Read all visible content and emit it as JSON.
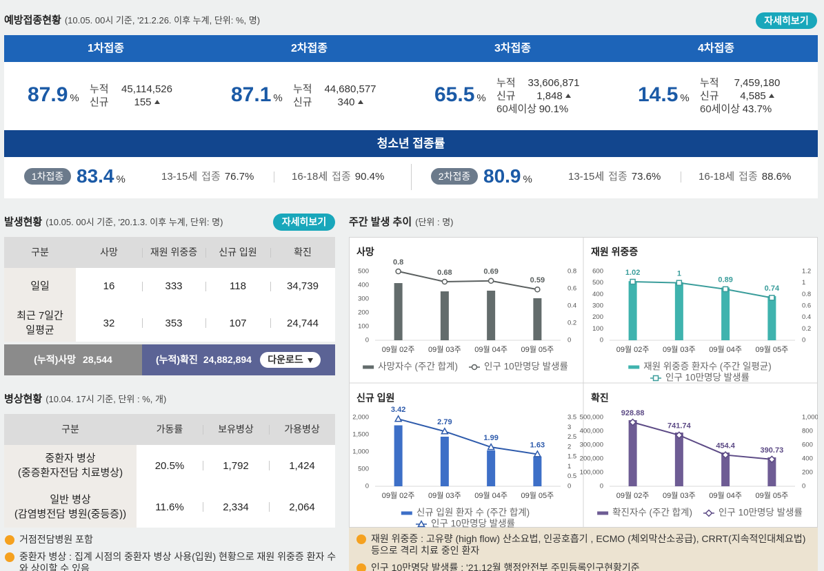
{
  "vaccination": {
    "title": "예방접종현황",
    "subtitle": "(10.05. 00시 기준, '21.2.26. 이후 누계, 단위: %, 명)",
    "button": "자세히보기",
    "unit": "%",
    "doses": [
      {
        "title": "1차접종",
        "rate": "87.9",
        "items": [
          {
            "label": "누적",
            "value": "45,114,526"
          },
          {
            "label": "신규",
            "value": "155"
          }
        ]
      },
      {
        "title": "2차접종",
        "rate": "87.1",
        "items": [
          {
            "label": "누적",
            "value": "44,680,577"
          },
          {
            "label": "신규",
            "value": "340"
          }
        ]
      },
      {
        "title": "3차접종",
        "rate": "65.5",
        "items": [
          {
            "label": "누적",
            "value": "33,606,871"
          },
          {
            "label": "신규",
            "value": "1,848"
          },
          {
            "label": "60세이상",
            "value": "90.1%"
          }
        ]
      },
      {
        "title": "4차접종",
        "rate": "14.5",
        "items": [
          {
            "label": "누적",
            "value": "7,459,180"
          },
          {
            "label": "신규",
            "value": "4,585"
          },
          {
            "label": "60세이상",
            "value": "43.7%"
          }
        ]
      }
    ],
    "youth": {
      "title": "청소년 접종률",
      "groups": [
        {
          "badge": "1차접종",
          "rate": "83.4",
          "ages": [
            {
              "age": "13-15세",
              "label": "접종",
              "value": "76.7%"
            },
            {
              "age": "16-18세",
              "label": "접종",
              "value": "90.4%"
            }
          ]
        },
        {
          "badge": "2차접종",
          "rate": "80.9",
          "ages": [
            {
              "age": "13-15세",
              "label": "접종",
              "value": "73.6%"
            },
            {
              "age": "16-18세",
              "label": "접종",
              "value": "88.6%"
            }
          ]
        }
      ]
    }
  },
  "outbreak": {
    "title": "발생현황",
    "subtitle": "(10.05. 00시 기준, '20.1.3. 이후 누계, 단위: 명)",
    "button": "자세히보기",
    "table": {
      "header": [
        "구분",
        "사망",
        "재원 위중증",
        "신규 입원",
        "확진"
      ],
      "rows": [
        [
          "일일",
          "16",
          "333",
          "118",
          "34,739"
        ],
        [
          "최근 7일간\n일평균",
          "32",
          "353",
          "107",
          "24,744"
        ]
      ]
    },
    "totals": [
      {
        "label": "(누적)사망",
        "value": "28,544"
      },
      {
        "label": "(누적)확진",
        "value": "24,882,894"
      }
    ],
    "download": "다운로드"
  },
  "beds": {
    "title": "병상현황",
    "subtitle": "(10.04. 17시 기준, 단위 : %, 개)",
    "table": {
      "header": [
        "구분",
        "가동률",
        "보유병상",
        "가용병상"
      ],
      "rows": [
        [
          "중환자 병상\n(중증환자전담 치료병상)",
          "20.5%",
          "1,792",
          "1,424"
        ],
        [
          "일반 병상\n(감염병전담 병원(중등증))",
          "11.6%",
          "2,334",
          "2,064"
        ]
      ]
    },
    "notes": [
      "거점전담병원 포함",
      "중환자 병상 : 집계 시점의 중환자 병상 사용(입원) 현황으로 재원 위중증 환자 수와 상이할 수 있음"
    ]
  },
  "weekly": {
    "title": "주간 발생 추이",
    "subtitle": "(단위 : 명)",
    "notes": [
      "재원 위중증 : 고유량 (high flow) 산소요법, 인공호흡기 , ECMO (체외막산소공급), CRRT(지속적인대체요법) 등으로 격리 치료 중인 환자",
      "인구 10만명당 발생률 : '21.12월 행정안전부 주민등록인구현황기준"
    ]
  },
  "chart_data": [
    {
      "type": "combo",
      "title": "사망",
      "categories": [
        "09월 02주",
        "09월 03주",
        "09월 04주",
        "09월 05주"
      ],
      "series": [
        {
          "name": "사망자수 (주간 합계)",
          "type": "bar",
          "color": "#636c6c",
          "values": [
            415,
            355,
            360,
            305
          ]
        },
        {
          "name": "인구 10만명당 발생률",
          "type": "line",
          "axis": "y2",
          "marker": "circle",
          "data_labels": true,
          "color": "#5a5f5f",
          "values": [
            0.8,
            0.68,
            0.69,
            0.59
          ]
        }
      ],
      "ylim": [
        0,
        500
      ],
      "yticks": [
        0,
        100,
        200,
        300,
        400,
        500
      ],
      "y2lim": [
        0,
        0.8
      ],
      "y2ticks": [
        0,
        0.2,
        0.4,
        0.6,
        0.8
      ]
    },
    {
      "type": "combo",
      "title": "재원 위중증",
      "categories": [
        "09월 02주",
        "09월 03주",
        "09월 04주",
        "09월 05주"
      ],
      "series": [
        {
          "name": "재원 위중증 환자수 (주간 일평균)",
          "type": "bar",
          "color": "#3fb3ae",
          "values": [
            515,
            505,
            460,
            385
          ]
        },
        {
          "name": "인구 10만명당 발생률",
          "type": "line",
          "axis": "y2",
          "marker": "square",
          "data_labels": true,
          "color": "#3a9d9b",
          "values": [
            1.02,
            1,
            0.89,
            0.74
          ]
        }
      ],
      "ylim": [
        0,
        600
      ],
      "yticks": [
        0,
        100,
        200,
        300,
        400,
        500,
        600
      ],
      "y2lim": [
        0,
        1.2
      ],
      "y2ticks": [
        0,
        0.2,
        0.4,
        0.6,
        0.8,
        1,
        1.2
      ]
    },
    {
      "type": "combo",
      "title": "신규 입원",
      "categories": [
        "09월 02주",
        "09월 03주",
        "09월 04주",
        "09월 05주"
      ],
      "series": [
        {
          "name": "신규 입원 환자 수 (주간 합계)",
          "type": "bar",
          "color": "#3d6fc7",
          "values": [
            1770,
            1440,
            1040,
            865
          ]
        },
        {
          "name": "인구 10만명당 발생률",
          "type": "line",
          "axis": "y2",
          "marker": "triangle",
          "data_labels": true,
          "color": "#2d5aab",
          "values": [
            3.42,
            2.79,
            1.99,
            1.63
          ]
        }
      ],
      "ylim": [
        0,
        2000
      ],
      "yticks": [
        0,
        500,
        {
          "value": 1000,
          "label": "1,000"
        },
        {
          "value": 1500,
          "label": "1,500"
        },
        {
          "value": 2000,
          "label": "2,000"
        }
      ],
      "y2lim": [
        0,
        3.5
      ],
      "y2ticks": [
        0,
        0.5,
        1,
        1.5,
        2,
        2.5,
        3,
        3.5
      ]
    },
    {
      "type": "combo",
      "title": "확진",
      "categories": [
        "09월 02주",
        "09월 03주",
        "09월 04주",
        "09월 05주"
      ],
      "series": [
        {
          "name": "확진자수 (주간 합계)",
          "type": "bar",
          "color": "#6e5c94",
          "values": [
            480000,
            390000,
            245000,
            210000
          ]
        },
        {
          "name": "인구 10만명당 발생률",
          "type": "line",
          "axis": "y2",
          "marker": "diamond",
          "data_labels": true,
          "color": "#5c4a85",
          "values": [
            928.88,
            741.74,
            454.4,
            390.73
          ]
        }
      ],
      "ylim": [
        0,
        500000
      ],
      "yticks": [
        0,
        {
          "value": 100000,
          "label": "100,000"
        },
        {
          "value": 200000,
          "label": "200,000"
        },
        {
          "value": 300000,
          "label": "300,000"
        },
        {
          "value": 400000,
          "label": "400,000"
        },
        {
          "value": 500000,
          "label": "500,000"
        }
      ],
      "y2lim": [
        0,
        1000
      ],
      "y2ticks": [
        0,
        200,
        400,
        600,
        800,
        {
          "value": 1000,
          "label": "1,000"
        }
      ]
    }
  ]
}
